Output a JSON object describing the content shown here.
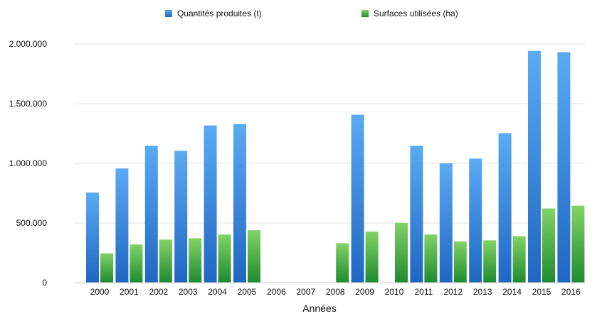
{
  "chart_data": {
    "type": "bar",
    "title": "",
    "xlabel": "Années",
    "ylabel": "",
    "ylim": [
      0,
      2000000
    ],
    "yticks": [
      0,
      500000,
      1000000,
      1500000,
      2000000
    ],
    "ytick_labels": [
      "0",
      "500.000",
      "1.000.000",
      "1.500.000",
      "2.000.000"
    ],
    "grid": "horizontal",
    "legend_position": "top",
    "categories": [
      "2000",
      "2001",
      "2002",
      "2003",
      "2004",
      "2005",
      "2006",
      "2007",
      "2008",
      "2009",
      "2010",
      "2011",
      "2012",
      "2013",
      "2014",
      "2015",
      "2016"
    ],
    "series": [
      {
        "name": "Quantités produites (t)",
        "color_top": "#5aaaf4",
        "color_bottom": "#1f66c2",
        "legend_icon": "blue-square",
        "values": [
          755000,
          957000,
          1147000,
          1105000,
          1318000,
          1330000,
          null,
          null,
          null,
          1408000,
          null,
          1147000,
          1000000,
          1040000,
          1253000,
          1943000,
          1932000
        ]
      },
      {
        "name": "Surfaces utilisées (ha)",
        "color_top": "#82d366",
        "color_bottom": "#1f8a2f",
        "legend_icon": "green-square",
        "values": [
          246000,
          320000,
          361000,
          372000,
          403000,
          440000,
          null,
          null,
          331000,
          428000,
          502000,
          403000,
          345000,
          355000,
          390000,
          622000,
          645000
        ]
      }
    ]
  }
}
